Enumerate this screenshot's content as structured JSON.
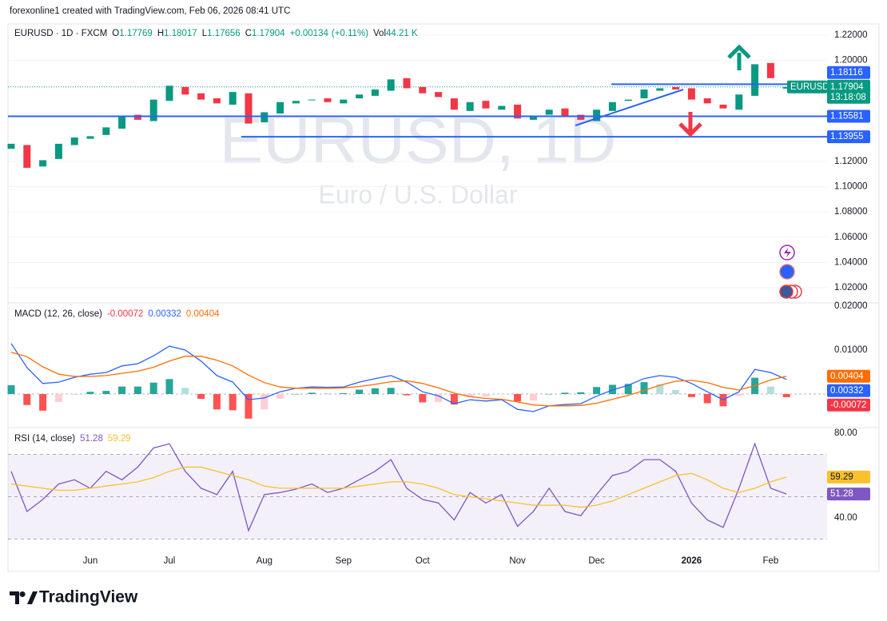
{
  "header": {
    "attribution": "forexonline1 created with TradingView.com, Feb 06, 2026 08:41 UTC"
  },
  "chart_data": [
    {
      "type": "candlestick",
      "symbol": "EURUSD · 1D · FXCM",
      "watermark": "EURUSD, 1D",
      "description": "Euro / U.S. Dollar",
      "categories": [
        null,
        null,
        null,
        null,
        null,
        "Jun",
        null,
        null,
        null,
        null,
        "Jul",
        null,
        null,
        null,
        null,
        null,
        "Aug",
        null,
        null,
        null,
        null,
        "Sep",
        null,
        null,
        null,
        null,
        "Oct",
        null,
        null,
        null,
        null,
        null,
        "Nov",
        null,
        null,
        null,
        null,
        "Dec",
        null,
        null,
        null,
        null,
        null,
        "2026",
        null,
        null,
        null,
        null,
        "Feb",
        null
      ],
      "open": [
        1.13,
        1.133,
        1.116,
        1.122,
        1.133,
        1.138,
        1.141,
        1.146,
        1.157,
        1.152,
        1.168,
        1.179,
        1.174,
        1.17,
        1.165,
        1.174,
        1.151,
        1.158,
        1.166,
        1.169,
        1.17,
        1.166,
        1.17,
        1.172,
        1.176,
        1.186,
        1.179,
        1.175,
        1.17,
        1.16,
        1.168,
        1.161,
        1.165,
        1.153,
        1.157,
        1.162,
        1.157,
        1.152,
        1.16,
        1.168,
        1.17,
        1.176,
        1.179,
        1.178,
        1.17,
        1.165,
        1.161,
        1.172,
        1.198,
        1.17769
      ],
      "close": [
        1.134,
        1.115,
        1.121,
        1.134,
        1.139,
        1.14,
        1.147,
        1.156,
        1.153,
        1.169,
        1.18,
        1.173,
        1.169,
        1.166,
        1.175,
        1.15,
        1.159,
        1.167,
        1.168,
        1.169,
        1.167,
        1.169,
        1.173,
        1.177,
        1.185,
        1.178,
        1.174,
        1.171,
        1.161,
        1.167,
        1.162,
        1.164,
        1.154,
        1.156,
        1.161,
        1.156,
        1.153,
        1.161,
        1.167,
        1.169,
        1.177,
        1.178,
        1.177,
        1.169,
        1.166,
        1.162,
        1.173,
        1.197,
        1.186,
        1.17904
      ],
      "up_color": "#089981",
      "down_color": "#f23645",
      "ohlc_labels": {
        "open": "O",
        "high": "H",
        "low": "L",
        "close": "C",
        "volume": "Vol"
      },
      "high": 1.18017,
      "low": 1.17656,
      "change": {
        "value": 0.00134,
        "label": "+0.00134"
      },
      "change_percent": {
        "value": 0.11,
        "label": "(+0.11%)"
      },
      "volume": {
        "value": 44210,
        "label": "44.21 K"
      },
      "price_tag": "EURUSD",
      "countdown": "13:18:08",
      "levels": [
        1.18116,
        1.15581,
        1.13955
      ],
      "level_color": "#2962ff",
      "ylim": [
        1.0086,
        1.2289
      ],
      "yticks": [
        {
          "value": 1.22,
          "label": "1.22000"
        },
        {
          "value": 1.2,
          "label": "1.20000"
        },
        {
          "value": 1.12,
          "label": "1.12000"
        },
        {
          "value": 1.1,
          "label": "1.10000"
        },
        {
          "value": 1.08,
          "label": "1.08000"
        },
        {
          "value": 1.06,
          "label": "1.06000"
        },
        {
          "value": 1.04,
          "label": "1.04000"
        },
        {
          "value": 1.02,
          "label": "1.02000"
        }
      ],
      "grid": true
    },
    {
      "type": "macd",
      "label": "MACD (12, 26, close)",
      "series": [
        {
          "type": "bar",
          "color": "#f23645",
          "values": [
            0.002,
            -0.0025,
            -0.0038,
            -0.0018,
            -0.0002,
            0.0005,
            0.0007,
            0.0017,
            0.0017,
            0.0026,
            0.0034,
            0.0014,
            -0.0011,
            -0.0035,
            -0.0037,
            -0.0056,
            -0.0035,
            -0.0011,
            0,
            0.0003,
            0.0002,
            0.0002,
            0.001,
            0.0013,
            0.0014,
            -0.0003,
            -0.0019,
            -0.0018,
            -0.0024,
            -0.0007,
            -0.0006,
            -0.0001,
            -0.0017,
            -0.0015,
            0,
            0.0003,
            0.0004,
            0.0016,
            0.0021,
            0.0023,
            0.0027,
            0.0022,
            0.0009,
            -0.0007,
            -0.0021,
            -0.0028,
            -0.0004,
            0.0037,
            0.0017,
            -0.00072
          ]
        },
        {
          "type": "line",
          "color": "#2962ff",
          "values": [
            0.0115,
            0.006,
            0.0024,
            0.0027,
            0.0038,
            0.0045,
            0.0049,
            0.0064,
            0.0069,
            0.0087,
            0.0109,
            0.01,
            0.0075,
            0.0042,
            0.0027,
            -0.0013,
            -0.0009,
            0.0005,
            0.0013,
            0.0016,
            0.0015,
            0.0016,
            0.0027,
            0.0035,
            0.0042,
            0.0027,
            0.0005,
            -0.0004,
            -0.0022,
            -0.0013,
            -0.0016,
            -0.0013,
            -0.0035,
            -0.004,
            -0.0027,
            -0.0024,
            -0.0022,
            -0.0005,
            0.0009,
            0.002,
            0.0035,
            0.0042,
            0.0038,
            0.0024,
            0.0005,
            -0.0013,
            0.0005,
            0.0056,
            0.0049,
            0.00332
          ]
        },
        {
          "type": "line",
          "color": "#ff6d00",
          "values": [
            0.0095,
            0.0085,
            0.0062,
            0.0045,
            0.004,
            0.004,
            0.0042,
            0.0047,
            0.0052,
            0.0061,
            0.0075,
            0.0086,
            0.0086,
            0.0077,
            0.0064,
            0.0043,
            0.0026,
            0.0016,
            0.0013,
            0.0013,
            0.0013,
            0.0014,
            0.0017,
            0.0022,
            0.0028,
            0.003,
            0.0024,
            0.0014,
            0.0002,
            -0.0006,
            -0.001,
            -0.0012,
            -0.0018,
            -0.0025,
            -0.0027,
            -0.0027,
            -0.0026,
            -0.0021,
            -0.0012,
            -0.0003,
            0.0008,
            0.002,
            0.0029,
            0.0031,
            0.0026,
            0.0015,
            0.0009,
            0.0019,
            0.0032,
            0.00404
          ]
        }
      ],
      "histogram_colors": [
        "#26a69a",
        "#b2dfdb",
        "#ff5252",
        "#ffcdd2"
      ],
      "ylim": [
        -0.00764,
        0.02055
      ],
      "yticks": [
        {
          "value": 0.02,
          "label": "0.02000"
        },
        {
          "value": 0.01,
          "label": "0.01000"
        }
      ]
    },
    {
      "type": "rsi",
      "label": "RSI (14, close)",
      "series": [
        {
          "type": "line",
          "color": "#7e57c2",
          "values": [
            62,
            43,
            48.7,
            56,
            58,
            54,
            62,
            58,
            64,
            73,
            75,
            62,
            54,
            51,
            62,
            34,
            51,
            52,
            53.6,
            56,
            52,
            54,
            58,
            62,
            67.5,
            54,
            48.7,
            47,
            39,
            52,
            47,
            51,
            36,
            43,
            54,
            43,
            41,
            51,
            60,
            62,
            67.5,
            67.5,
            62,
            47,
            39,
            35.5,
            54,
            75,
            54,
            51.28
          ]
        },
        {
          "type": "line",
          "color": "#fbc02d",
          "values": [
            56,
            55,
            54,
            53,
            53,
            54,
            55,
            56,
            57,
            59,
            62,
            64,
            64,
            62,
            60,
            58,
            55,
            54,
            54,
            54,
            54,
            54,
            55,
            56,
            57,
            57,
            56,
            54,
            51,
            50,
            49,
            48,
            47,
            46,
            46,
            46,
            45,
            46,
            48,
            51,
            54,
            57,
            60,
            61,
            58,
            54,
            52,
            54,
            57,
            59.29
          ]
        }
      ],
      "levels": [
        30,
        50,
        70
      ],
      "band_color": "#7e57c2",
      "ylim": [
        24.15,
        82.64
      ],
      "yticks": [
        {
          "value": 80,
          "label": "80.00"
        },
        {
          "value": 40,
          "label": "40.00"
        }
      ]
    }
  ],
  "footer": {
    "brand": "TradingView"
  }
}
